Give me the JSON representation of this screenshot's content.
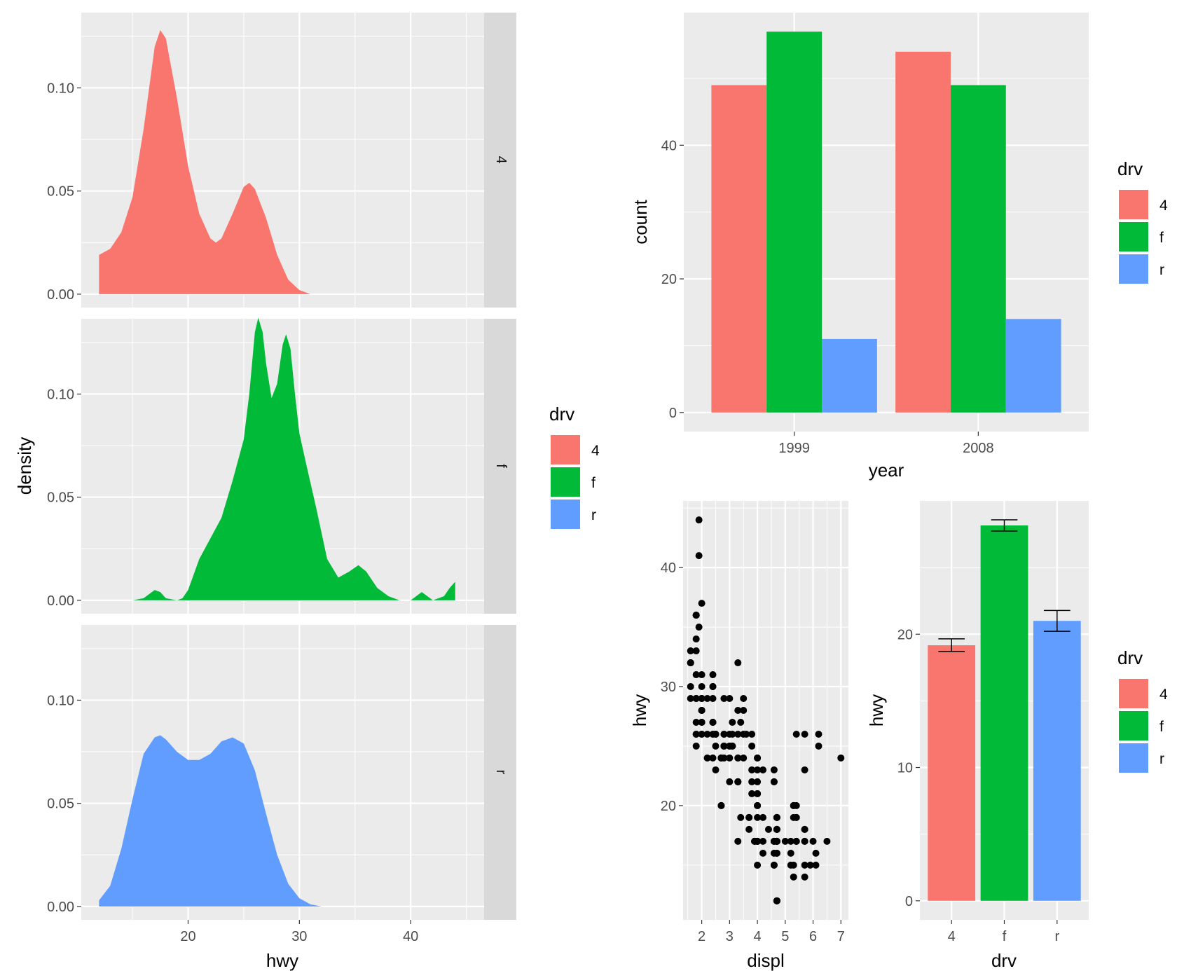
{
  "colors": {
    "drv_4": "#F8766D",
    "drv_f": "#00BA38",
    "drv_r": "#619CFF",
    "panel_bg": "#EBEBEB",
    "grid_major": "#FFFFFF",
    "strip_bg": "#D9D9D9",
    "axis_text": "#4D4D4D"
  },
  "chart_data": [
    {
      "id": "density_facets",
      "type": "area",
      "title": "",
      "xlabel": "hwy",
      "ylabel": "density",
      "xlim": [
        10.4,
        46.6
      ],
      "ylim": [
        -0.0065,
        0.1365
      ],
      "x_ticks": [
        20,
        30,
        40
      ],
      "x_tick_labels": [
        "20",
        "30",
        "40"
      ],
      "y_ticks": [
        0.0,
        0.05,
        0.1
      ],
      "y_tick_labels": [
        "0.00",
        "0.05",
        "0.10"
      ],
      "grid": true,
      "legend_title": "drv",
      "legend_labels": [
        "4",
        "f",
        "r"
      ],
      "facets": [
        {
          "strip": "4",
          "color_key": "drv_4",
          "points": [
            [
              12,
              0.019
            ],
            [
              13,
              0.022
            ],
            [
              14,
              0.03
            ],
            [
              15,
              0.047
            ],
            [
              16,
              0.08
            ],
            [
              17,
              0.12
            ],
            [
              17.5,
              0.128
            ],
            [
              18,
              0.124
            ],
            [
              19,
              0.095
            ],
            [
              20,
              0.062
            ],
            [
              21,
              0.039
            ],
            [
              22,
              0.027
            ],
            [
              22.5,
              0.025
            ],
            [
              23,
              0.027
            ],
            [
              24,
              0.039
            ],
            [
              25,
              0.052
            ],
            [
              25.5,
              0.054
            ],
            [
              26,
              0.051
            ],
            [
              27,
              0.037
            ],
            [
              28,
              0.019
            ],
            [
              29,
              0.007
            ],
            [
              30,
              0.002
            ],
            [
              31,
              0.0
            ]
          ]
        },
        {
          "strip": "f",
          "color_key": "drv_f",
          "points": [
            [
              14,
              0.0
            ],
            [
              15,
              0.0
            ],
            [
              16,
              0.001
            ],
            [
              16.5,
              0.003
            ],
            [
              17,
              0.005
            ],
            [
              17.5,
              0.004
            ],
            [
              18,
              0.001
            ],
            [
              19,
              0.0
            ],
            [
              19.5,
              0.001
            ],
            [
              20,
              0.005
            ],
            [
              21,
              0.02
            ],
            [
              22,
              0.03
            ],
            [
              23,
              0.04
            ],
            [
              24,
              0.058
            ],
            [
              25,
              0.078
            ],
            [
              25.5,
              0.1
            ],
            [
              26,
              0.13
            ],
            [
              26.3,
              0.137
            ],
            [
              26.7,
              0.13
            ],
            [
              27,
              0.115
            ],
            [
              27.5,
              0.098
            ],
            [
              28,
              0.105
            ],
            [
              28.5,
              0.124
            ],
            [
              28.8,
              0.129
            ],
            [
              29.2,
              0.122
            ],
            [
              29.6,
              0.1
            ],
            [
              30,
              0.081
            ],
            [
              30.7,
              0.064
            ],
            [
              31.5,
              0.045
            ],
            [
              32.5,
              0.02
            ],
            [
              33.5,
              0.011
            ],
            [
              34.5,
              0.014
            ],
            [
              35.3,
              0.017
            ],
            [
              36,
              0.014
            ],
            [
              37,
              0.006
            ],
            [
              38,
              0.002
            ],
            [
              39,
              0.0
            ],
            [
              40,
              0.0
            ],
            [
              40.5,
              0.002
            ],
            [
              41,
              0.004
            ],
            [
              41.5,
              0.002
            ],
            [
              42,
              0.0
            ],
            [
              43,
              0.002
            ],
            [
              43.5,
              0.006
            ],
            [
              44,
              0.009
            ]
          ]
        },
        {
          "strip": "r",
          "color_key": "drv_r",
          "points": [
            [
              12,
              0.003
            ],
            [
              13,
              0.01
            ],
            [
              14,
              0.028
            ],
            [
              15,
              0.052
            ],
            [
              16,
              0.074
            ],
            [
              17,
              0.082
            ],
            [
              17.5,
              0.083
            ],
            [
              18,
              0.081
            ],
            [
              19,
              0.075
            ],
            [
              20,
              0.071
            ],
            [
              21,
              0.071
            ],
            [
              22,
              0.074
            ],
            [
              23,
              0.08
            ],
            [
              24,
              0.082
            ],
            [
              25,
              0.079
            ],
            [
              26,
              0.066
            ],
            [
              27,
              0.045
            ],
            [
              28,
              0.025
            ],
            [
              29,
              0.011
            ],
            [
              30,
              0.004
            ],
            [
              31,
              0.001
            ],
            [
              32,
              0.0
            ]
          ]
        }
      ]
    },
    {
      "id": "year_count_bars",
      "type": "bar",
      "title": "",
      "xlabel": "year",
      "ylabel": "count",
      "categories": [
        "1999",
        "2008"
      ],
      "series": [
        {
          "name": "4",
          "color_key": "drv_4",
          "values": [
            49,
            54
          ]
        },
        {
          "name": "f",
          "color_key": "drv_f",
          "values": [
            57,
            49
          ]
        },
        {
          "name": "r",
          "color_key": "drv_r",
          "values": [
            11,
            14
          ]
        }
      ],
      "ylim": [
        -2.85,
        59.85
      ],
      "y_ticks": [
        0,
        20,
        40
      ],
      "y_tick_labels": [
        "0",
        "20",
        "40"
      ],
      "grid": true,
      "legend_title": "drv",
      "legend_labels": [
        "4",
        "f",
        "r"
      ]
    },
    {
      "id": "displ_hwy_scatter",
      "type": "scatter",
      "title": "",
      "xlabel": "displ",
      "ylabel": "hwy",
      "xlim": [
        1.33,
        7.27
      ],
      "ylim": [
        10.4,
        45.6
      ],
      "x_ticks": [
        2,
        3,
        4,
        5,
        6,
        7
      ],
      "x_tick_labels": [
        "2",
        "3",
        "4",
        "5",
        "6",
        "7"
      ],
      "y_ticks": [
        20,
        30,
        40
      ],
      "y_tick_labels": [
        "20",
        "30",
        "40"
      ],
      "grid": true,
      "points": [
        [
          1.8,
          29
        ],
        [
          1.8,
          29
        ],
        [
          2.0,
          31
        ],
        [
          2.0,
          30
        ],
        [
          2.8,
          26
        ],
        [
          2.8,
          26
        ],
        [
          3.1,
          27
        ],
        [
          1.8,
          26
        ],
        [
          1.8,
          25
        ],
        [
          2.0,
          28
        ],
        [
          2.0,
          27
        ],
        [
          2.8,
          25
        ],
        [
          2.8,
          25
        ],
        [
          3.1,
          25
        ],
        [
          3.1,
          25
        ],
        [
          2.8,
          24
        ],
        [
          3.1,
          25
        ],
        [
          4.2,
          23
        ],
        [
          5.3,
          20
        ],
        [
          5.3,
          15
        ],
        [
          5.3,
          20
        ],
        [
          5.7,
          17
        ],
        [
          6.0,
          17
        ],
        [
          5.7,
          26
        ],
        [
          5.7,
          23
        ],
        [
          6.2,
          26
        ],
        [
          6.2,
          25
        ],
        [
          7.0,
          24
        ],
        [
          5.3,
          19
        ],
        [
          5.3,
          14
        ],
        [
          5.7,
          15
        ],
        [
          6.5,
          17
        ],
        [
          2.4,
          27
        ],
        [
          2.4,
          30
        ],
        [
          3.1,
          26
        ],
        [
          3.5,
          29
        ],
        [
          3.6,
          26
        ],
        [
          2.4,
          24
        ],
        [
          3.0,
          24
        ],
        [
          3.3,
          22
        ],
        [
          3.3,
          22
        ],
        [
          3.3,
          24
        ],
        [
          3.3,
          24
        ],
        [
          3.3,
          17
        ],
        [
          3.8,
          22
        ],
        [
          3.8,
          21
        ],
        [
          3.8,
          23
        ],
        [
          4.0,
          23
        ],
        [
          3.7,
          19
        ],
        [
          3.7,
          18
        ],
        [
          3.9,
          17
        ],
        [
          3.9,
          17
        ],
        [
          4.7,
          19
        ],
        [
          4.7,
          19
        ],
        [
          4.7,
          12
        ],
        [
          4.7,
          17
        ],
        [
          5.2,
          15
        ],
        [
          5.2,
          17
        ],
        [
          3.9,
          17
        ],
        [
          4.7,
          17
        ],
        [
          4.7,
          12
        ],
        [
          4.7,
          17
        ],
        [
          5.2,
          16
        ],
        [
          5.7,
          18
        ],
        [
          5.9,
          15
        ],
        [
          4.7,
          16
        ],
        [
          4.7,
          12
        ],
        [
          4.7,
          17
        ],
        [
          4.7,
          17
        ],
        [
          4.7,
          16
        ],
        [
          5.7,
          18
        ],
        [
          6.1,
          16
        ],
        [
          4.0,
          17
        ],
        [
          4.2,
          19
        ],
        [
          4.4,
          18
        ],
        [
          4.6,
          17
        ],
        [
          5.4,
          19
        ],
        [
          5.4,
          19
        ],
        [
          4.0,
          19
        ],
        [
          4.0,
          17
        ],
        [
          4.6,
          17
        ],
        [
          5.0,
          17
        ],
        [
          4.2,
          17
        ],
        [
          4.2,
          16
        ],
        [
          4.6,
          16
        ],
        [
          4.6,
          17
        ],
        [
          4.6,
          15
        ],
        [
          5.4,
          17
        ],
        [
          5.4,
          26
        ],
        [
          3.8,
          25
        ],
        [
          3.8,
          26
        ],
        [
          4.0,
          24
        ],
        [
          4.0,
          21
        ],
        [
          4.6,
          22
        ],
        [
          4.6,
          23
        ],
        [
          4.6,
          22
        ],
        [
          5.4,
          20
        ],
        [
          1.6,
          33
        ],
        [
          1.6,
          32
        ],
        [
          1.6,
          32
        ],
        [
          1.6,
          29
        ],
        [
          1.6,
          32
        ],
        [
          1.8,
          34
        ],
        [
          1.8,
          36
        ],
        [
          1.8,
          36
        ],
        [
          2.0,
          29
        ],
        [
          2.4,
          26
        ],
        [
          2.4,
          27
        ],
        [
          2.4,
          30
        ],
        [
          2.4,
          31
        ],
        [
          2.5,
          26
        ],
        [
          2.5,
          26
        ],
        [
          3.3,
          28
        ],
        [
          2.0,
          26
        ],
        [
          2.0,
          29
        ],
        [
          2.0,
          28
        ],
        [
          2.0,
          27
        ],
        [
          2.7,
          24
        ],
        [
          2.7,
          24
        ],
        [
          2.7,
          24
        ],
        [
          3.0,
          22
        ],
        [
          3.7,
          19
        ],
        [
          4.0,
          20
        ],
        [
          4.7,
          17
        ],
        [
          4.7,
          12
        ],
        [
          4.7,
          19
        ],
        [
          4.7,
          18
        ],
        [
          5.7,
          14
        ],
        [
          6.1,
          15
        ],
        [
          4.7,
          18
        ],
        [
          4.7,
          18
        ],
        [
          3.0,
          26
        ],
        [
          3.0,
          25
        ],
        [
          3.5,
          26
        ],
        [
          3.3,
          22
        ],
        [
          4.0,
          21
        ],
        [
          4.6,
          15
        ],
        [
          5.4,
          17
        ],
        [
          1.6,
          30
        ],
        [
          1.8,
          36
        ],
        [
          1.8,
          33
        ],
        [
          1.9,
          35
        ],
        [
          1.9,
          44
        ],
        [
          1.9,
          41
        ],
        [
          2.0,
          37
        ],
        [
          2.0,
          29
        ],
        [
          2.5,
          26
        ],
        [
          2.8,
          29
        ],
        [
          2.7,
          24
        ],
        [
          3.4,
          27
        ],
        [
          4.0,
          17
        ],
        [
          4.7,
          18
        ],
        [
          5.7,
          17
        ],
        [
          2.2,
          26
        ],
        [
          2.2,
          29
        ],
        [
          3.0,
          29
        ],
        [
          2.5,
          23
        ],
        [
          2.5,
          25
        ],
        [
          4.0,
          15
        ],
        [
          4.0,
          24
        ],
        [
          2.4,
          27
        ],
        [
          1.8,
          26
        ],
        [
          1.8,
          27
        ],
        [
          2.4,
          29
        ],
        [
          3.0,
          25
        ],
        [
          3.5,
          24
        ],
        [
          2.7,
          20
        ],
        [
          2.7,
          20
        ],
        [
          4.0,
          20
        ],
        [
          4.0,
          17
        ],
        [
          3.4,
          19
        ],
        [
          4.0,
          22
        ],
        [
          2.2,
          24
        ],
        [
          3.3,
          32
        ],
        [
          1.8,
          31
        ],
        [
          3.3,
          26
        ],
        [
          3.5,
          28
        ],
        [
          2.0,
          26
        ],
        [
          2.0,
          28
        ],
        [
          2.8,
          25
        ]
      ]
    },
    {
      "id": "drv_hwy_mean_bars",
      "type": "bar",
      "title": "",
      "xlabel": "drv",
      "ylabel": "hwy",
      "categories": [
        "4",
        "f",
        "r"
      ],
      "color_keys": [
        "drv_4",
        "drv_f",
        "drv_r"
      ],
      "values": [
        19.17,
        28.16,
        21.0
      ],
      "error_low": [
        18.7,
        27.74,
        20.22
      ],
      "error_high": [
        19.65,
        28.58,
        21.78
      ],
      "ylim": [
        -1.43,
        30.0
      ],
      "y_ticks": [
        0,
        10,
        20
      ],
      "y_tick_labels": [
        "0",
        "10",
        "20"
      ],
      "grid": true,
      "legend_title": "drv",
      "legend_labels": [
        "4",
        "f",
        "r"
      ]
    }
  ]
}
